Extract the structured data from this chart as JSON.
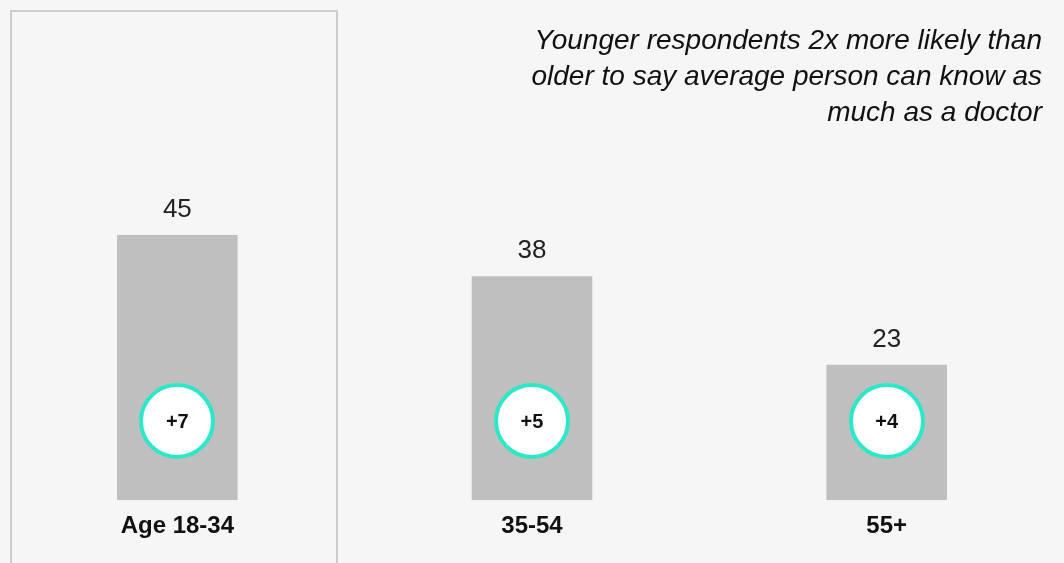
{
  "chart_data": {
    "type": "bar",
    "title": "Younger respondents 2x more likely than older to say average person can know as much as a doctor",
    "categories": [
      "Age 18-34",
      "35-54",
      "55+"
    ],
    "values": [
      45,
      38,
      23
    ],
    "color": "#bfbfbf",
    "data_labels": true,
    "grid": false,
    "legend": false,
    "tick_labels": "x",
    "annotations": [
      "+7",
      "+5",
      "+4"
    ]
  }
}
